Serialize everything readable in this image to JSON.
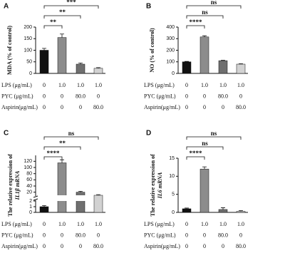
{
  "chart_data": [
    {
      "type": "bar",
      "panel": "A",
      "ylabel": [
        "MDA (% of control)"
      ],
      "values": [
        100,
        155,
        40,
        22
      ],
      "errors": [
        8,
        15,
        5,
        3
      ],
      "colors": [
        "#111111",
        "#8c8c8c",
        "#6f6f6f",
        "#d2d2d2"
      ],
      "ylim": [
        0,
        200
      ],
      "yticks": [
        0,
        50,
        100,
        150,
        200
      ],
      "brackets": [
        {
          "label": "**",
          "bars": [
            0,
            1
          ]
        },
        {
          "label": "**",
          "bars": [
            0,
            2
          ]
        },
        {
          "label": "***",
          "bars": [
            0,
            3
          ]
        }
      ],
      "conditions": [
        {
          "label": "LPS (μg/mL)",
          "values": [
            "0",
            "1.0",
            "1.0",
            "1.0"
          ]
        },
        {
          "label": "PYC (μg/mL)",
          "values": [
            "0",
            "0",
            "80.0",
            "0"
          ]
        },
        {
          "label": "Aspirin(μg/mL)",
          "values": [
            "0",
            "0",
            "0",
            "80.0"
          ]
        }
      ]
    },
    {
      "type": "bar",
      "panel": "B",
      "ylabel": [
        "NO (% of control)"
      ],
      "values": [
        100,
        315,
        110,
        80
      ],
      "errors": [
        4,
        10,
        4,
        4
      ],
      "colors": [
        "#111111",
        "#8c8c8c",
        "#6f6f6f",
        "#d2d2d2"
      ],
      "ylim": [
        0,
        400
      ],
      "yticks": [
        0,
        100,
        200,
        300,
        400
      ],
      "brackets": [
        {
          "label": "****",
          "bars": [
            0,
            1
          ]
        },
        {
          "label": "ns",
          "bars": [
            0,
            2
          ]
        },
        {
          "label": "ns",
          "bars": [
            0,
            3
          ]
        }
      ],
      "conditions": [
        {
          "label": "LPS (μg/mL)",
          "values": [
            "0",
            "1.0",
            "1.0",
            "1.0"
          ]
        },
        {
          "label": "PYC (μg/mL)",
          "values": [
            "0",
            "0",
            "80.0",
            "0"
          ]
        },
        {
          "label": "Aspirin(μg/mL)",
          "values": [
            "0",
            "0",
            "0",
            "80.0"
          ]
        }
      ]
    },
    {
      "type": "bar",
      "panel": "C",
      "ylabel": [
        "The relative expression of",
        "IL1β mRNA"
      ],
      "values": [
        1,
        115,
        20,
        10
      ],
      "errors": [
        0.2,
        10,
        3,
        2
      ],
      "colors": [
        "#111111",
        "#8c8c8c",
        "#6f6f6f",
        "#d2d2d2"
      ],
      "ylim": [
        0,
        130
      ],
      "ybreak": [
        2,
        10
      ],
      "yticks": [
        0,
        1,
        2,
        20,
        40,
        60,
        80,
        100,
        120
      ],
      "brackets": [
        {
          "label": "****",
          "bars": [
            0,
            1
          ]
        },
        {
          "label": "**",
          "bars": [
            0,
            2
          ]
        },
        {
          "label": "ns",
          "bars": [
            0,
            3
          ]
        }
      ],
      "conditions": [
        {
          "label": "LPS (μg/mL)",
          "values": [
            "0",
            "1.0",
            "1.0",
            "1.0"
          ]
        },
        {
          "label": "PYC (μg/mL)",
          "values": [
            "0",
            "0",
            "80.0",
            "0"
          ]
        },
        {
          "label": "Aspirin(μg/mL)",
          "values": [
            "0",
            "0",
            "0",
            "80.0"
          ]
        }
      ]
    },
    {
      "type": "bar",
      "panel": "D",
      "ylabel": [
        "The relative expression of",
        "IL6 mRNA"
      ],
      "values": [
        1,
        12,
        0.8,
        0.3
      ],
      "errors": [
        0.2,
        0.6,
        0.5,
        0.2
      ],
      "colors": [
        "#111111",
        "#8c8c8c",
        "#6f6f6f",
        "#d2d2d2"
      ],
      "ylim": [
        0,
        15
      ],
      "yticks": [
        0,
        5,
        10,
        15
      ],
      "brackets": [
        {
          "label": "****",
          "bars": [
            0,
            1
          ]
        },
        {
          "label": "ns",
          "bars": [
            0,
            2
          ]
        },
        {
          "label": "ns",
          "bars": [
            0,
            3
          ]
        }
      ],
      "conditions": [
        {
          "label": "LPS (μg/mL)",
          "values": [
            "0",
            "1.0",
            "1.0",
            "1.0"
          ]
        },
        {
          "label": "PYC (μg/mL)",
          "values": [
            "0",
            "0",
            "80.0",
            "0"
          ]
        },
        {
          "label": "Aspirin(μg/mL)",
          "values": [
            "0",
            "0",
            "0",
            "80.0"
          ]
        }
      ]
    }
  ]
}
